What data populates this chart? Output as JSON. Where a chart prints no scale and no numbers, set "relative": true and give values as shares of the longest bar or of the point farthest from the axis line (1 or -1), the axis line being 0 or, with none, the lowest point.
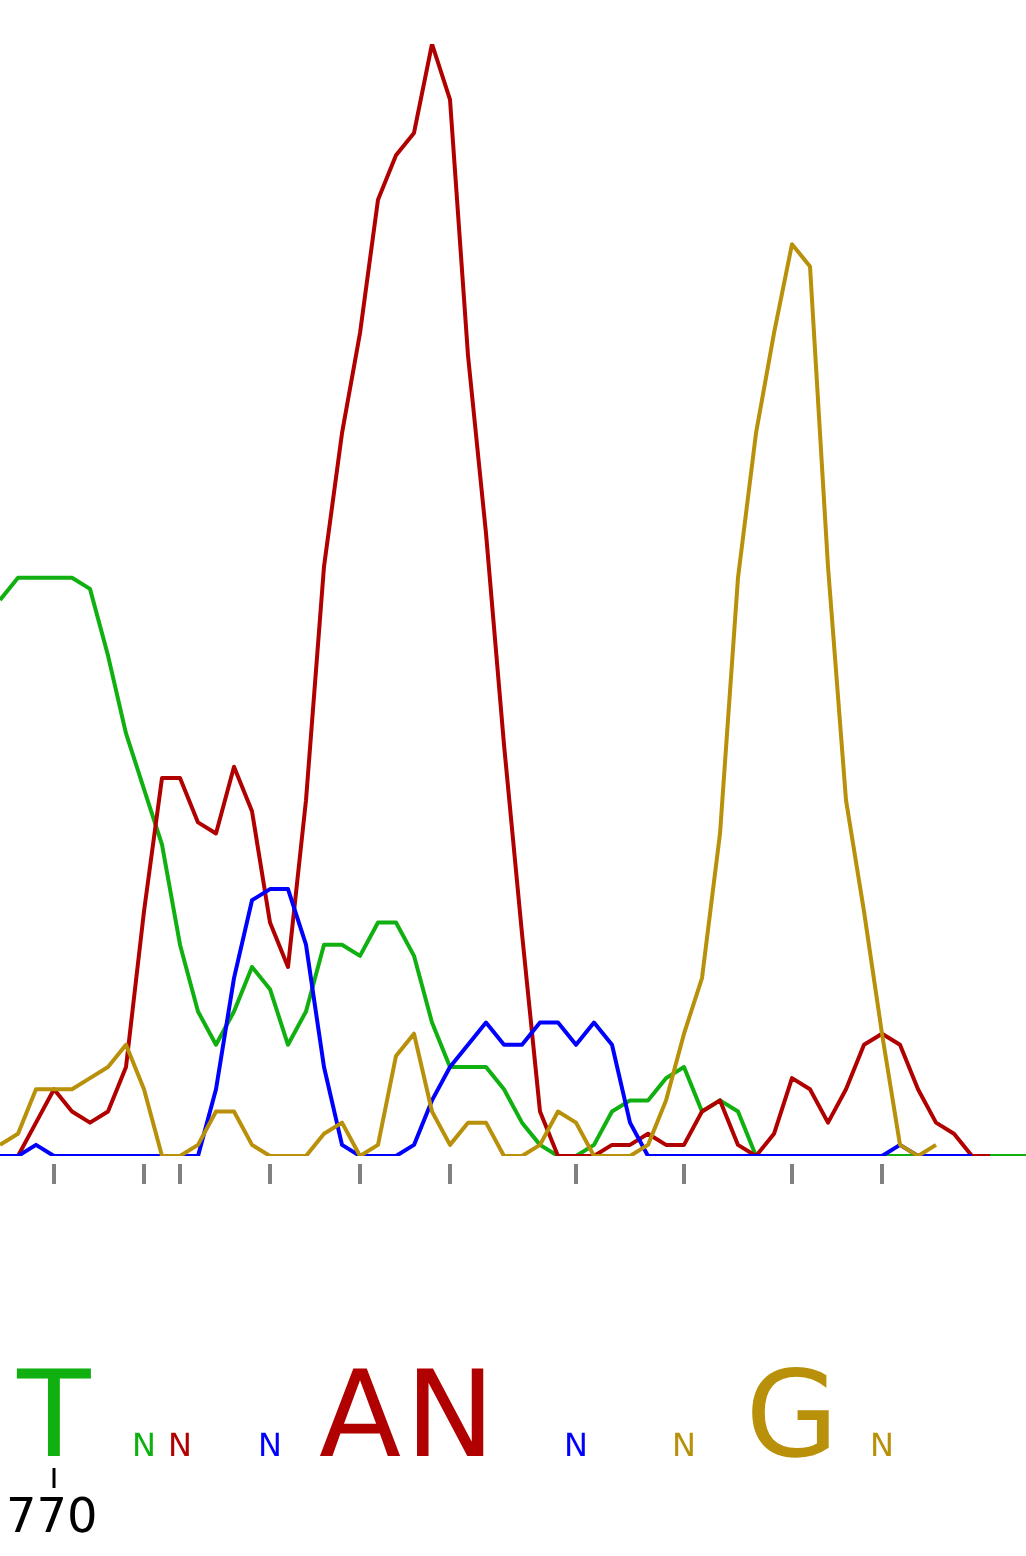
{
  "chart_data": {
    "type": "line",
    "relative": true,
    "categories": [
      null,
      null,
      null,
      "T",
      null,
      null,
      null,
      null,
      "N",
      null,
      "N",
      null,
      null,
      null,
      null,
      "N",
      null,
      null,
      null,
      null,
      "A",
      null,
      null,
      null,
      null,
      "N",
      null,
      null,
      null,
      null,
      null,
      null,
      "N",
      null,
      null,
      null,
      null,
      null,
      "N",
      null,
      null,
      null,
      null,
      null,
      "G",
      null,
      null,
      null,
      null,
      "N",
      null,
      null,
      null,
      null,
      null,
      null,
      null,
      null
    ],
    "series": [
      {
        "color": "#b8900a",
        "values": [
          0.01,
          0.02,
          0.06,
          0.06,
          0.06,
          0.07,
          0.08,
          0.1,
          0.06,
          0,
          0,
          0.01,
          0.04,
          0.04,
          0.01,
          0,
          0,
          0,
          0.02,
          0.03,
          0,
          0.01,
          0.09,
          0.11,
          0.04,
          0.01,
          0.03,
          0.03,
          0,
          0,
          0.01,
          0.04,
          0.03,
          0,
          0,
          0,
          0.01,
          0.05,
          0.11,
          0.16,
          0.29,
          0.52,
          0.65,
          0.74,
          0.82,
          0.8,
          0.53,
          0.32,
          0.22,
          0.11,
          0.01,
          0,
          0.01,
          null,
          null,
          null,
          null,
          null
        ]
      },
      {
        "color": "#0000ff",
        "values": [
          0,
          0,
          0.01,
          0,
          0,
          0,
          0,
          0,
          0,
          0,
          0,
          0,
          0.06,
          0.16,
          0.23,
          0.24,
          0.24,
          0.19,
          0.08,
          0.01,
          0,
          0,
          0,
          0.01,
          0.05,
          0.08,
          0.1,
          0.12,
          0.1,
          0.1,
          0.12,
          0.12,
          0.1,
          0.12,
          0.1,
          0.03,
          0,
          0,
          0,
          0,
          0,
          0,
          0,
          0,
          0,
          0,
          0,
          0,
          0,
          0,
          0.01,
          0,
          0,
          0,
          0,
          null,
          null,
          null
        ]
      },
      {
        "color": "#b00000",
        "values": [
          0,
          0,
          0.03,
          0.06,
          0.04,
          0.03,
          0.04,
          0.08,
          0.22,
          0.34,
          0.34,
          0.3,
          0.29,
          0.35,
          0.31,
          0.21,
          0.17,
          0.32,
          0.53,
          0.65,
          0.74,
          0.86,
          0.9,
          0.92,
          1,
          0.95,
          0.72,
          0.56,
          0.37,
          0.2,
          0.04,
          0,
          0,
          0,
          0.01,
          0.01,
          0.02,
          0.01,
          0.01,
          0.04,
          0.05,
          0.01,
          0,
          0.02,
          0.07,
          0.06,
          0.03,
          0.06,
          0.1,
          0.11,
          0.1,
          0.06,
          0.03,
          0.02,
          0,
          0,
          null,
          null
        ]
      },
      {
        "color": "#10b010",
        "values": [
          0.5,
          0.52,
          0.52,
          0.52,
          0.52,
          0.51,
          0.45,
          0.38,
          0.33,
          0.28,
          0.19,
          0.13,
          0.1,
          0.13,
          0.17,
          0.15,
          0.1,
          0.13,
          0.19,
          0.19,
          0.18,
          0.21,
          0.21,
          0.18,
          0.12,
          0.08,
          0.08,
          0.08,
          0.06,
          0.03,
          0.01,
          0,
          0,
          0.01,
          0.04,
          0.05,
          0.05,
          0.07,
          0.08,
          0.04,
          0.05,
          0.04,
          0,
          0,
          0,
          0,
          0,
          0,
          0,
          0,
          0,
          0,
          0,
          0,
          0,
          0,
          0,
          0
        ]
      }
    ],
    "annotations": [
      {
        "text": "770",
        "x": "T"
      }
    ]
  }
}
